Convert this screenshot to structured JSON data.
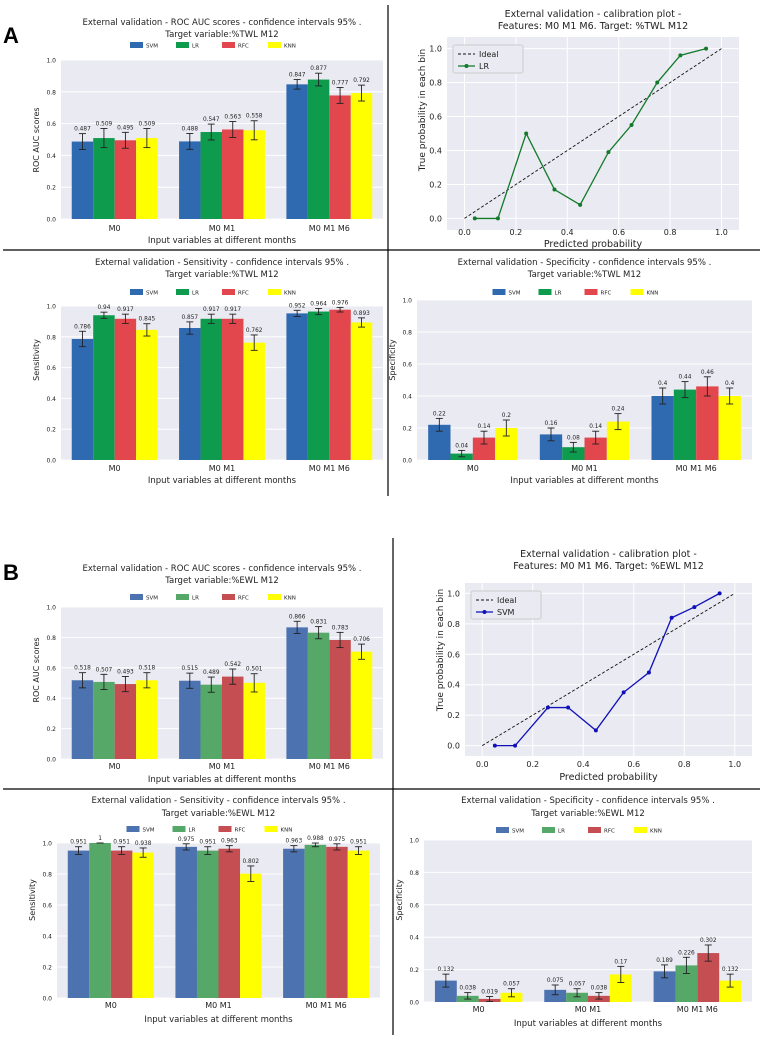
{
  "figure": {
    "panels": [
      {
        "label": "A"
      },
      {
        "label": "B"
      }
    ]
  },
  "chart_data": [
    {
      "type": "bar",
      "title": [
        "External validation - ROC AUC scores  - confidence intervals 95% .",
        "Target variable:%TWL M12"
      ],
      "xlabel": "Input variables at different months",
      "ylabel": "ROC AUC scores",
      "ylim": [
        0,
        1.0
      ],
      "yticks": [
        "0.0",
        "0.2",
        "0.4",
        "0.6",
        "0.8",
        "1.0"
      ],
      "categories": [
        "M0",
        "M0 M1",
        "M0 M1 M6"
      ],
      "series": [
        {
          "name": "SVM",
          "values": [
            0.487,
            0.488,
            0.847
          ],
          "labels": [
            "0.487",
            "0.488",
            "0.847"
          ],
          "err": [
            0.05,
            0.05,
            0.03
          ],
          "color": "#2f6ab0"
        },
        {
          "name": "LR",
          "values": [
            0.509,
            0.547,
            0.877
          ],
          "labels": [
            "0.509",
            "0.547",
            "0.877"
          ],
          "err": [
            0.06,
            0.05,
            0.04
          ],
          "color": "#0f9b4e"
        },
        {
          "name": "RFC",
          "values": [
            0.495,
            0.563,
            0.777
          ],
          "labels": [
            "0.495",
            "0.563",
            "0.777"
          ],
          "err": [
            0.05,
            0.05,
            0.05
          ],
          "color": "#e2474e"
        },
        {
          "name": "KNN",
          "values": [
            0.509,
            0.558,
            0.792
          ],
          "labels": [
            "0.509",
            "0.558",
            "0.792"
          ],
          "err": [
            0.06,
            0.06,
            0.05
          ],
          "color": "#ffff00"
        }
      ]
    },
    {
      "type": "line",
      "title": [
        "External validation - calibration plot -",
        "Features: M0 M1 M6. Target: %TWL M12"
      ],
      "xlabel": "Predicted probability",
      "ylabel": "True probability in each bin",
      "xlim": [
        0,
        1.0
      ],
      "ylim": [
        0,
        1.0
      ],
      "xticks": [
        "0.0",
        "0.2",
        "0.4",
        "0.6",
        "0.8",
        "1.0"
      ],
      "yticks": [
        "0.0",
        "0.2",
        "0.4",
        "0.6",
        "0.8",
        "1.0"
      ],
      "legend": [
        "Ideal",
        "LR"
      ],
      "series": [
        {
          "name": "LR",
          "color": "#137a2a",
          "x": [
            0.04,
            0.13,
            0.24,
            0.35,
            0.45,
            0.56,
            0.65,
            0.75,
            0.84,
            0.94
          ],
          "y": [
            0.0,
            0.0,
            0.5,
            0.17,
            0.08,
            0.39,
            0.55,
            0.8,
            0.96,
            1.0
          ]
        }
      ]
    },
    {
      "type": "bar",
      "title": [
        "External validation - Sensitivity  - confidence intervals 95% .",
        "Target variable:%TWL M12"
      ],
      "xlabel": "Input variables at different months",
      "ylabel": "Sensitivity",
      "ylim": [
        0,
        1.0
      ],
      "yticks": [
        "0.0",
        "0.2",
        "0.4",
        "0.6",
        "0.8",
        "1.0"
      ],
      "categories": [
        "M0",
        "M0 M1",
        "M0 M1 M6"
      ],
      "series": [
        {
          "name": "SVM",
          "values": [
            0.786,
            0.857,
            0.952
          ],
          "labels": [
            "0.786",
            "0.857",
            "0.952"
          ],
          "err": [
            0.05,
            0.04,
            0.02
          ],
          "color": "#2f6ab0"
        },
        {
          "name": "LR",
          "values": [
            0.94,
            0.917,
            0.964
          ],
          "labels": [
            "0.94",
            "0.917",
            "0.964"
          ],
          "err": [
            0.02,
            0.03,
            0.02
          ],
          "color": "#0f9b4e"
        },
        {
          "name": "RFC",
          "values": [
            0.917,
            0.917,
            0.976
          ],
          "labels": [
            "0.917",
            "0.917",
            "0.976"
          ],
          "err": [
            0.03,
            0.03,
            0.015
          ],
          "color": "#e2474e"
        },
        {
          "name": "KNN",
          "values": [
            0.845,
            0.762,
            0.893
          ],
          "labels": [
            "0.845",
            "0.762",
            "0.893"
          ],
          "err": [
            0.04,
            0.05,
            0.03
          ],
          "color": "#ffff00"
        }
      ]
    },
    {
      "type": "bar",
      "title": [
        "External validation - Specificity - confidence intervals 95% .",
        "Target variable:%TWL M12"
      ],
      "xlabel": "Input variables at different months",
      "ylabel": "Specificity",
      "ylim": [
        0,
        1.0
      ],
      "yticks": [
        "0.0",
        "0.2",
        "0.4",
        "0.6",
        "0.8",
        "1.0"
      ],
      "categories": [
        "M0",
        "M0 M1",
        "M0 M1 M6"
      ],
      "series": [
        {
          "name": "SVM",
          "values": [
            0.22,
            0.16,
            0.4
          ],
          "labels": [
            "0.22",
            "0.16",
            "0.4"
          ],
          "err": [
            0.04,
            0.04,
            0.05
          ],
          "color": "#2f6ab0"
        },
        {
          "name": "LR",
          "values": [
            0.04,
            0.08,
            0.44
          ],
          "labels": [
            "0.04",
            "0.08",
            "0.44"
          ],
          "err": [
            0.02,
            0.03,
            0.05
          ],
          "color": "#0f9b4e"
        },
        {
          "name": "RFC",
          "values": [
            0.14,
            0.14,
            0.46
          ],
          "labels": [
            "0.14",
            "0.14",
            "0.46"
          ],
          "err": [
            0.04,
            0.04,
            0.06
          ],
          "color": "#e2474e"
        },
        {
          "name": "KNN",
          "values": [
            0.2,
            0.24,
            0.4
          ],
          "labels": [
            "0.2",
            "0.24",
            "0.4"
          ],
          "err": [
            0.05,
            0.05,
            0.05
          ],
          "color": "#ffff00"
        }
      ]
    },
    {
      "type": "bar",
      "title": [
        "External validation - ROC AUC scores - confidence intervals 95% .",
        "Target variable:%EWL M12"
      ],
      "xlabel": "Input variables at different months",
      "ylabel": "ROC AUC scores",
      "ylim": [
        0,
        1.0
      ],
      "yticks": [
        "0.0",
        "0.2",
        "0.4",
        "0.6",
        "0.8",
        "1.0"
      ],
      "categories": [
        "M0",
        "M0 M1",
        "M0 M1 M6"
      ],
      "series": [
        {
          "name": "SVM",
          "values": [
            0.518,
            0.515,
            0.866
          ],
          "labels": [
            "0.518",
            "0.515",
            "0.866"
          ],
          "err": [
            0.05,
            0.05,
            0.04
          ],
          "color": "#4c72b0"
        },
        {
          "name": "LR",
          "values": [
            0.507,
            0.489,
            0.831
          ],
          "labels": [
            "0.507",
            "0.489",
            "0.831"
          ],
          "err": [
            0.05,
            0.05,
            0.04
          ],
          "color": "#55a868"
        },
        {
          "name": "RFC",
          "values": [
            0.493,
            0.542,
            0.783
          ],
          "labels": [
            "0.493",
            "0.542",
            "0.783"
          ],
          "err": [
            0.05,
            0.05,
            0.05
          ],
          "color": "#c44e52"
        },
        {
          "name": "KNN",
          "values": [
            0.518,
            0.501,
            0.706
          ],
          "labels": [
            "0.518",
            "0.501",
            "0.706"
          ],
          "err": [
            0.05,
            0.06,
            0.05
          ],
          "color": "#ffff00"
        }
      ]
    },
    {
      "type": "line",
      "title": [
        "External validation - calibration plot -",
        "Features: M0 M1 M6. Target: %EWL M12"
      ],
      "xlabel": "Predicted probability",
      "ylabel": "True probability in each bin",
      "xlim": [
        0,
        1.0
      ],
      "ylim": [
        0,
        1.0
      ],
      "xticks": [
        "0.0",
        "0.2",
        "0.4",
        "0.6",
        "0.8",
        "1.0"
      ],
      "yticks": [
        "0.0",
        "0.2",
        "0.4",
        "0.6",
        "0.8",
        "1.0"
      ],
      "legend": [
        "Ideal",
        "SVM"
      ],
      "series": [
        {
          "name": "SVM",
          "color": "#1010b8",
          "x": [
            0.05,
            0.13,
            0.26,
            0.34,
            0.45,
            0.56,
            0.66,
            0.75,
            0.84,
            0.94
          ],
          "y": [
            0.0,
            0.0,
            0.25,
            0.25,
            0.1,
            0.35,
            0.48,
            0.84,
            0.91,
            1.0
          ]
        }
      ]
    },
    {
      "type": "bar",
      "title": [
        "External validation - Sensitivity - confidence intervals 95% .",
        "Target variable:%EWL M12"
      ],
      "xlabel": "Input variables at different months",
      "ylabel": "Sensitivity",
      "ylim": [
        0,
        1.0
      ],
      "yticks": [
        "0.0",
        "0.2",
        "0.4",
        "0.6",
        "0.8",
        "1.0"
      ],
      "categories": [
        "M0",
        "M0 M1",
        "M0 M1 M6"
      ],
      "series": [
        {
          "name": "SVM",
          "values": [
            0.951,
            0.975,
            0.963
          ],
          "labels": [
            "0.951",
            "0.975",
            "0.963"
          ],
          "err": [
            0.025,
            0.02,
            0.02
          ],
          "color": "#4c72b0"
        },
        {
          "name": "LR",
          "values": [
            1.0,
            0.951,
            0.988
          ],
          "labels": [
            "1",
            "0.951",
            "0.988"
          ],
          "err": [
            0.0,
            0.025,
            0.012
          ],
          "color": "#55a868"
        },
        {
          "name": "RFC",
          "values": [
            0.951,
            0.963,
            0.975
          ],
          "labels": [
            "0.951",
            "0.963",
            "0.975"
          ],
          "err": [
            0.025,
            0.02,
            0.02
          ],
          "color": "#c44e52"
        },
        {
          "name": "KNN",
          "values": [
            0.938,
            0.802,
            0.951
          ],
          "labels": [
            "0.938",
            "0.802",
            "0.951"
          ],
          "err": [
            0.03,
            0.05,
            0.025
          ],
          "color": "#ffff00"
        }
      ]
    },
    {
      "type": "bar",
      "title": [
        "External validation - Specificity - confidence intervals 95% .",
        "Target variable:%EWL M12"
      ],
      "xlabel": "Input variables at different months",
      "ylabel": "Specificity",
      "ylim": [
        0,
        1.0
      ],
      "yticks": [
        "0.0",
        "0.2",
        "0.4",
        "0.6",
        "0.8",
        "1.0"
      ],
      "categories": [
        "M0",
        "M0 M1",
        "M0 M1 M6"
      ],
      "series": [
        {
          "name": "SVM",
          "values": [
            0.132,
            0.075,
            0.189
          ],
          "labels": [
            "0.132",
            "0.075",
            "0.189"
          ],
          "err": [
            0.04,
            0.03,
            0.04
          ],
          "color": "#4c72b0"
        },
        {
          "name": "LR",
          "values": [
            0.038,
            0.057,
            0.226
          ],
          "labels": [
            "0.038",
            "0.057",
            "0.226"
          ],
          "err": [
            0.02,
            0.025,
            0.05
          ],
          "color": "#55a868"
        },
        {
          "name": "RFC",
          "values": [
            0.019,
            0.038,
            0.302
          ],
          "labels": [
            "0.019",
            "0.038",
            "0.302"
          ],
          "err": [
            0.015,
            0.02,
            0.05
          ],
          "color": "#c44e52"
        },
        {
          "name": "KNN",
          "values": [
            0.057,
            0.17,
            0.132
          ],
          "labels": [
            "0.057",
            "0.17",
            "0.132"
          ],
          "err": [
            0.025,
            0.05,
            0.04
          ],
          "color": "#ffff00"
        }
      ]
    }
  ]
}
